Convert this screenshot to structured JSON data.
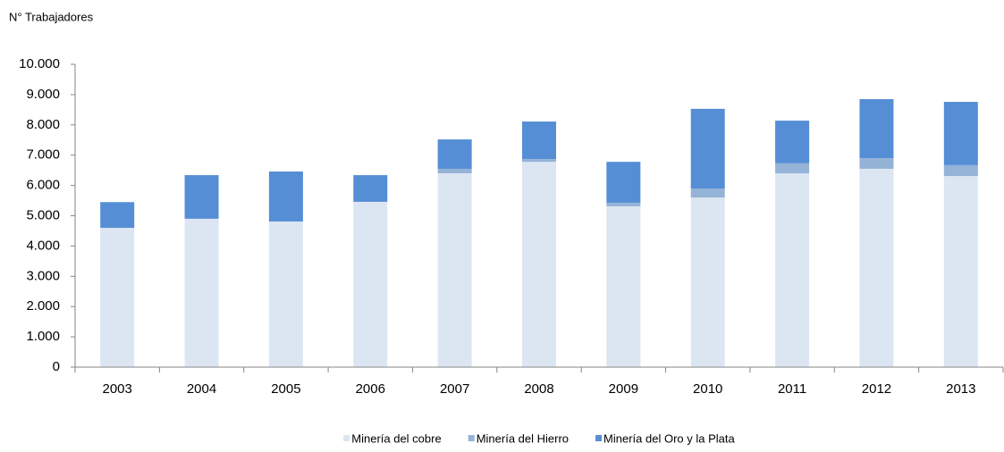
{
  "chart_data": {
    "type": "bar",
    "stacked": true,
    "y_axis_label": "N° Trabajadores",
    "categories": [
      "2003",
      "2004",
      "2005",
      "2006",
      "2007",
      "2008",
      "2009",
      "2010",
      "2011",
      "2012",
      "2013"
    ],
    "series": [
      {
        "name": "Minería del cobre",
        "color": "#dce6f2",
        "values": [
          4600,
          4900,
          4810,
          5460,
          6400,
          6780,
          5310,
          5600,
          6400,
          6550,
          6310
        ]
      },
      {
        "name": "Minería del Hierro",
        "color": "#95b3d7",
        "values": [
          0,
          0,
          0,
          0,
          150,
          90,
          120,
          300,
          330,
          350,
          360
        ]
      },
      {
        "name": "Minería del Oro y la Plata",
        "color": "#558ed5",
        "values": [
          850,
          1440,
          1650,
          880,
          970,
          1240,
          1350,
          2630,
          1410,
          1950,
          2090
        ]
      }
    ],
    "ylim": [
      0,
      10000
    ],
    "yticks": [
      0,
      {
        "value": 1000,
        "label": "1.000"
      },
      {
        "value": 2000,
        "label": "2.000"
      },
      {
        "value": 3000,
        "label": "3.000"
      },
      {
        "value": 4000,
        "label": "4.000"
      },
      {
        "value": 5000,
        "label": "5.000"
      },
      {
        "value": 6000,
        "label": "6.000"
      },
      {
        "value": 7000,
        "label": "7.000"
      },
      {
        "value": 8000,
        "label": "8.000"
      },
      {
        "value": 9000,
        "label": "9.000"
      },
      {
        "value": 10000,
        "label": "10.000"
      }
    ],
    "grid": false,
    "legend": "bottom"
  }
}
